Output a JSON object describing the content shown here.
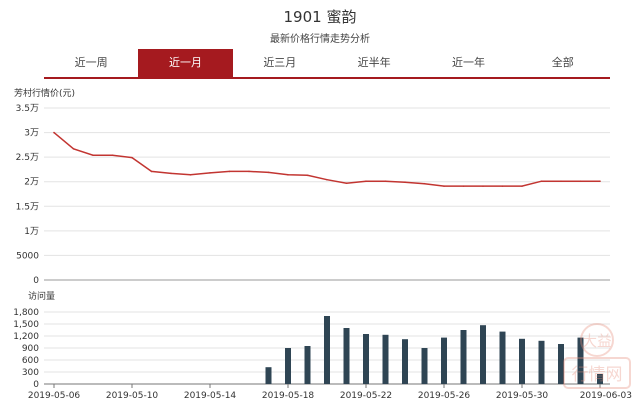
{
  "header": {
    "title": "1901 蜜韵",
    "subtitle": "最新价格行情走势分析"
  },
  "tabs": [
    {
      "label": "近一周",
      "active": false
    },
    {
      "label": "近一月",
      "active": true
    },
    {
      "label": "近三月",
      "active": false
    },
    {
      "label": "近半年",
      "active": false
    },
    {
      "label": "近一年",
      "active": false
    },
    {
      "label": "全部",
      "active": false
    }
  ],
  "colors": {
    "accent": "#a51a1f",
    "price_line": "#c23531",
    "bar": "#2f4554"
  },
  "watermark": {
    "text_top": "大益",
    "text_bottom": "行情网"
  },
  "chart_data": [
    {
      "type": "line",
      "title": "",
      "ylabel": "芳村行情价(元)",
      "ylim": [
        0,
        35000
      ],
      "y_ticks": [
        "3.5万",
        "3万",
        "2.5万",
        "2万",
        "1.5万",
        "1万",
        "5000",
        "0"
      ],
      "y_tick_values": [
        35000,
        30000,
        25000,
        20000,
        15000,
        10000,
        5000,
        0
      ],
      "x": [
        "2019-05-06",
        "2019-05-07",
        "2019-05-08",
        "2019-05-09",
        "2019-05-10",
        "2019-05-11",
        "2019-05-12",
        "2019-05-13",
        "2019-05-14",
        "2019-05-15",
        "2019-05-16",
        "2019-05-17",
        "2019-05-18",
        "2019-05-19",
        "2019-05-20",
        "2019-05-21",
        "2019-05-22",
        "2019-05-23",
        "2019-05-24",
        "2019-05-25",
        "2019-05-26",
        "2019-05-27",
        "2019-05-28",
        "2019-05-29",
        "2019-05-30",
        "2019-05-31",
        "2019-06-01",
        "2019-06-02",
        "2019-06-03"
      ],
      "series": [
        {
          "values": [
            30000,
            26700,
            25400,
            25400,
            24900,
            22100,
            21700,
            21400,
            21800,
            22100,
            22100,
            21900,
            21400,
            21300,
            20400,
            19700,
            20100,
            20100,
            19900,
            19600,
            19100,
            19100,
            19100,
            19100,
            19100,
            20100,
            20100,
            20100,
            20100
          ]
        }
      ]
    },
    {
      "type": "bar",
      "ylabel": "访问量",
      "ylim": [
        0,
        1800
      ],
      "y_ticks": [
        "1,800",
        "1,500",
        "1,200",
        "900",
        "600",
        "300",
        "0"
      ],
      "y_tick_values": [
        1800,
        1500,
        1200,
        900,
        600,
        300,
        0
      ],
      "x_ticks": [
        "2019-05-06",
        "2019-05-10",
        "2019-05-14",
        "2019-05-18",
        "2019-05-22",
        "2019-05-26",
        "2019-05-30",
        "2019-06-03"
      ],
      "series": [
        {
          "values": [
            0,
            0,
            0,
            0,
            0,
            0,
            0,
            0,
            0,
            0,
            0,
            420,
            900,
            950,
            1700,
            1400,
            1250,
            1230,
            1120,
            900,
            1160,
            1350,
            1470,
            1310,
            1130,
            1080,
            1000,
            1160,
            250
          ]
        }
      ]
    }
  ]
}
